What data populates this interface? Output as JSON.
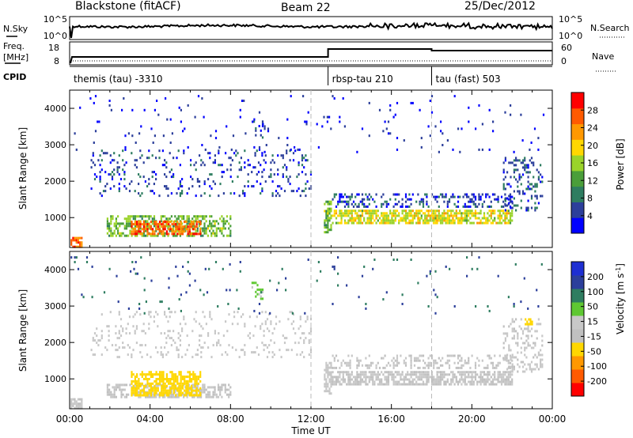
{
  "header": {
    "station": "Blackstone (fitACF)",
    "beam": "Beam 22",
    "date": "25/Dec/2012"
  },
  "panels": {
    "noise": {
      "left_label": "N.Sky",
      "left_ticks": [
        "10^5",
        "10^0"
      ],
      "right_label": "N.Search",
      "right_ticks": [
        "10^5",
        "10^0"
      ]
    },
    "freq": {
      "left_label_1": "Freq.",
      "left_label_2": "[MHz]",
      "left_ticks": [
        "18",
        "8"
      ],
      "right_label": "Nave",
      "right_ticks": [
        "60",
        "0"
      ]
    },
    "cpid": {
      "label": "CPID",
      "segments": [
        {
          "text": "themis (tau) -3310",
          "start_hour": 0
        },
        {
          "text": "rbsp-tau 210",
          "start_hour": 12.85
        },
        {
          "text": "tau (fast) 503",
          "start_hour": 18.0
        }
      ]
    }
  },
  "colors": {
    "power": [
      "#0000ff",
      "#2c3f9b",
      "#2e7d60",
      "#4a9e3a",
      "#9ad32a",
      "#ffd700",
      "#ff9800",
      "#ff5a00",
      "#ff0000"
    ],
    "velocity": [
      "#ff0000",
      "#ff5a00",
      "#ff9800",
      "#ffd700",
      "#c0c0c0",
      "#c8c8c8",
      "#5fc832",
      "#2e7d60",
      "#2c3f9b",
      "#1e2fd2"
    ]
  },
  "chart_data": [
    {
      "type": "heatmap",
      "name": "power",
      "ylabel": "Slant Range [km]",
      "x_range_hours": [
        0,
        24
      ],
      "ylim": [
        180,
        4500
      ],
      "yticks": [
        1000,
        2000,
        3000,
        4000
      ],
      "colorbar_label": "Power [dB]",
      "colorbar_range": [
        0,
        32
      ],
      "colorbar_ticks": [
        "4",
        "8",
        "12",
        "16",
        "20",
        "24",
        "28"
      ],
      "regions": [
        {
          "t0": 0.0,
          "t1": 0.6,
          "r0": 200,
          "r1": 500,
          "v": 26,
          "density": 0.8
        },
        {
          "t0": 1.8,
          "t1": 8.0,
          "r0": 500,
          "r1": 1100,
          "v": 14,
          "density": 0.55
        },
        {
          "t0": 3.0,
          "t1": 6.5,
          "r0": 550,
          "r1": 950,
          "v": 26,
          "density": 0.7
        },
        {
          "t0": 1.0,
          "t1": 12.0,
          "r0": 1600,
          "r1": 2900,
          "v": 5,
          "density": 0.12
        },
        {
          "t0": 12.6,
          "t1": 13.0,
          "r0": 600,
          "r1": 1500,
          "v": 14,
          "density": 0.6
        },
        {
          "t0": 13.0,
          "t1": 22.0,
          "r0": 850,
          "r1": 1250,
          "v": 18,
          "density": 0.7
        },
        {
          "t0": 13.0,
          "t1": 22.0,
          "r0": 1300,
          "r1": 1700,
          "v": 5,
          "density": 0.3
        },
        {
          "t0": 21.5,
          "t1": 23.5,
          "r0": 1200,
          "r1": 2700,
          "v": 6,
          "density": 0.25
        },
        {
          "t0": 9.0,
          "t1": 9.6,
          "r0": 3200,
          "r1": 3700,
          "v": 5,
          "density": 0.3
        },
        {
          "t0": 0.0,
          "t1": 24.0,
          "r0": 2800,
          "r1": 4400,
          "v": 3,
          "density": 0.02
        }
      ]
    },
    {
      "type": "heatmap",
      "name": "velocity",
      "xlabel": "Time UT",
      "ylabel": "Slant Range [km]",
      "x_range_hours": [
        0,
        24
      ],
      "xticks": [
        "00:00",
        "04:00",
        "08:00",
        "12:00",
        "16:00",
        "20:00",
        "00:00"
      ],
      "ylim": [
        180,
        4500
      ],
      "yticks": [
        1000,
        2000,
        3000,
        4000
      ],
      "colorbar_label": "Velocity [m s^-1]",
      "colorbar_range": [
        -250,
        250
      ],
      "colorbar_ticks": [
        "-200",
        "-100",
        "-50",
        "-15",
        "15",
        "50",
        "100",
        "200"
      ],
      "regions": [
        {
          "t0": 0.0,
          "t1": 0.6,
          "r0": 200,
          "r1": 500,
          "v": 5,
          "density": 0.8
        },
        {
          "t0": 1.8,
          "t1": 8.0,
          "r0": 500,
          "r1": 900,
          "v": 0,
          "density": 0.55
        },
        {
          "t0": 3.0,
          "t1": 6.5,
          "r0": 550,
          "r1": 1250,
          "v": -70,
          "density": 0.65
        },
        {
          "t0": 1.0,
          "t1": 12.0,
          "r0": 1600,
          "r1": 2900,
          "v": 30,
          "density": 0.12
        },
        {
          "t0": 12.6,
          "t1": 13.0,
          "r0": 600,
          "r1": 1500,
          "v": 30,
          "density": 0.6
        },
        {
          "t0": 13.0,
          "t1": 22.0,
          "r0": 850,
          "r1": 1250,
          "v": 0,
          "density": 0.7
        },
        {
          "t0": 13.0,
          "t1": 22.0,
          "r0": 1300,
          "r1": 1700,
          "v": 5,
          "density": 0.3
        },
        {
          "t0": 21.5,
          "t1": 23.5,
          "r0": 1200,
          "r1": 2700,
          "v": 10,
          "density": 0.25
        },
        {
          "t0": 22.5,
          "t1": 23.0,
          "r0": 2500,
          "r1": 2700,
          "v": -80,
          "density": 0.6
        },
        {
          "t0": 9.0,
          "t1": 9.6,
          "r0": 3200,
          "r1": 3700,
          "v": 60,
          "density": 0.3
        },
        {
          "t0": 0.0,
          "t1": 24.0,
          "r0": 2800,
          "r1": 4400,
          "v": 150,
          "density": 0.02
        }
      ]
    }
  ]
}
